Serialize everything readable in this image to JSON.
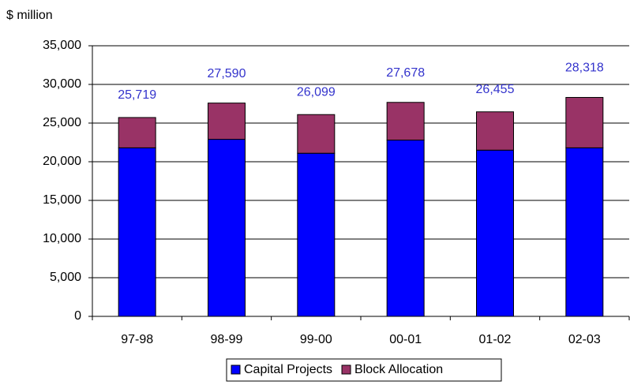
{
  "chart_data": {
    "type": "stacked-bar",
    "y_label": "$ million",
    "categories": [
      "97-98",
      "98-99",
      "99-00",
      "00-01",
      "01-02",
      "02-03"
    ],
    "series": [
      {
        "name": "Capital Projects",
        "color": "#0000ff",
        "values": [
          21800,
          22900,
          21100,
          22800,
          21500,
          21800
        ]
      },
      {
        "name": "Block Allocation",
        "color": "#993366",
        "values": [
          3919,
          4690,
          4999,
          4878,
          4955,
          6518
        ]
      }
    ],
    "totals": [
      25719,
      27590,
      26099,
      27678,
      26455,
      28318
    ],
    "total_labels": [
      "25,719",
      "27,590",
      "26,099",
      "27,678",
      "26,455",
      "28,318"
    ],
    "ylim": [
      0,
      35000
    ],
    "yticks": [
      0,
      {
        "value": 5000,
        "label": "5,000"
      },
      {
        "value": 10000,
        "label": "10,000"
      },
      {
        "value": 15000,
        "label": "15,000"
      },
      {
        "value": 20000,
        "label": "20,000"
      },
      {
        "value": 25000,
        "label": "25,000"
      },
      {
        "value": 30000,
        "label": "30,000"
      },
      {
        "value": 35000,
        "label": "35,000"
      }
    ],
    "grid": true,
    "label_color": "#3333cc"
  }
}
